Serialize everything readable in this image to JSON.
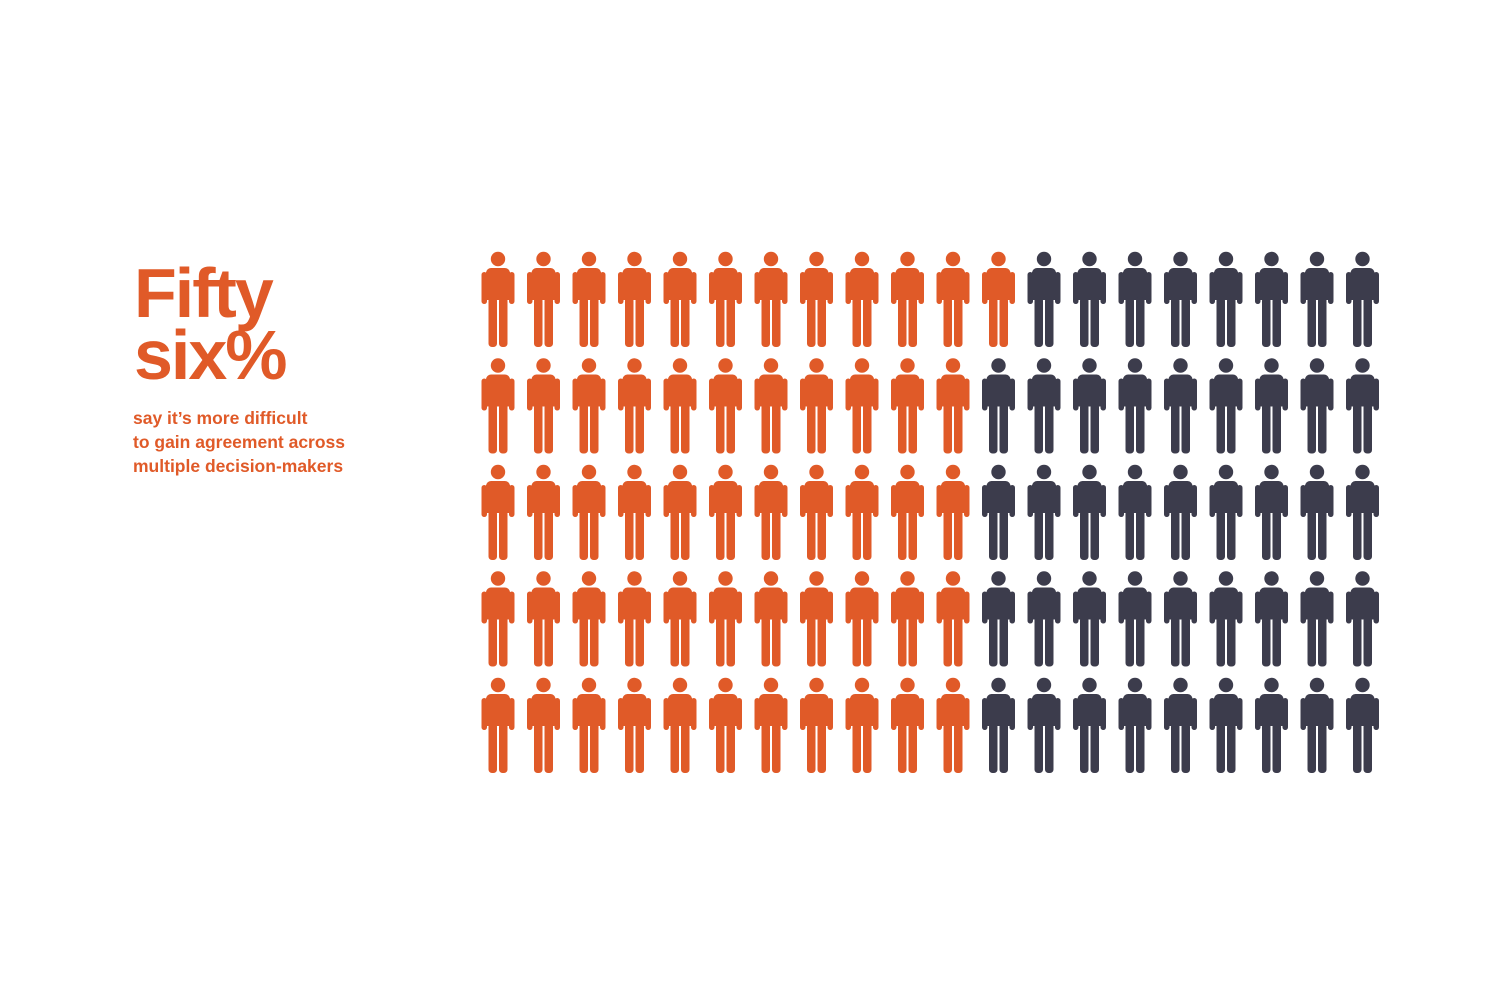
{
  "headline": {
    "line1": "Fifty",
    "line2": "six%"
  },
  "subtitle": {
    "line1": "say it’s more difficult",
    "line2": "to gain agreement across",
    "line3": "multiple decision-makers"
  },
  "colors": {
    "accent": "#E05A28",
    "dark": "#3C3C4C"
  },
  "chart_data": {
    "type": "pictogram",
    "icon": "person-icon",
    "rows": 5,
    "columns": 20,
    "total": 100,
    "highlighted_per_row": [
      12,
      11,
      11,
      11,
      11
    ],
    "highlighted_total": 56,
    "highlight_color": "#E05A28",
    "base_color": "#3C3C4C"
  }
}
